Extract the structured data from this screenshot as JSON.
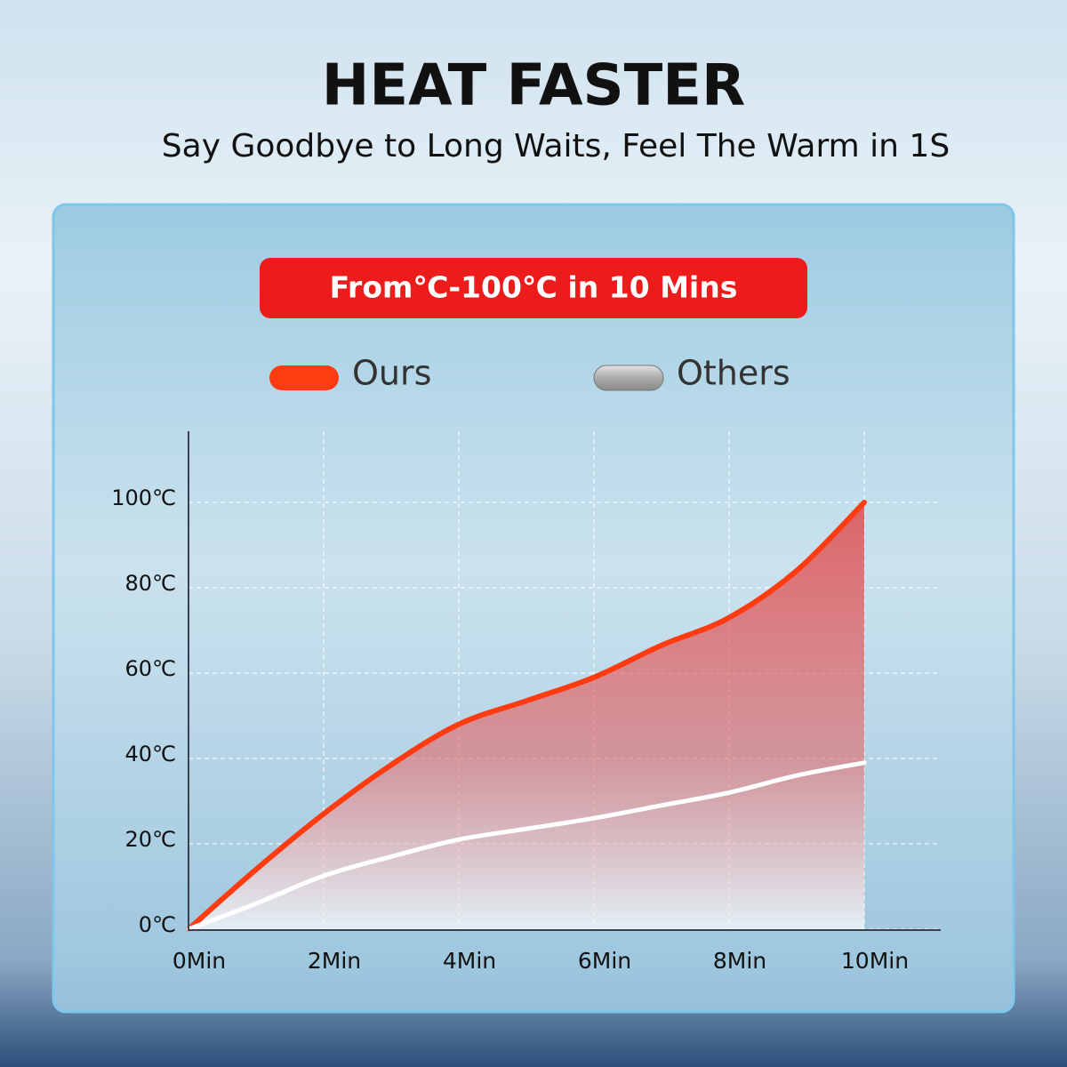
{
  "chart_data": {
    "type": "line",
    "title": "HEAT FASTER",
    "subtitle": "Say Goodbye to Long Waits, Feel The Warm in 1S",
    "annotation": "From℃-100℃ in 10 Mins",
    "x": [
      0,
      1,
      2,
      3,
      4,
      5,
      6,
      7,
      8,
      9,
      10
    ],
    "series": [
      {
        "name": "Ours",
        "color": "#ff3b12",
        "values": [
          0,
          14,
          27,
          38.5,
          48,
          53.5,
          59,
          66.5,
          73,
          84,
          100
        ]
      },
      {
        "name": "Others",
        "color": "#ffffff",
        "values": [
          0,
          6,
          12.5,
          17,
          21,
          23.5,
          26,
          29,
          32,
          36,
          39
        ]
      }
    ],
    "xlim": [
      0,
      11.1
    ],
    "ylim": [
      0,
      115
    ],
    "xticks": [
      {
        "value": 0,
        "label": "0Min"
      },
      {
        "value": 2,
        "label": "2Min"
      },
      {
        "value": 4,
        "label": "4Min"
      },
      {
        "value": 6,
        "label": "6Min"
      },
      {
        "value": 8,
        "label": "8Min"
      },
      {
        "value": 10,
        "label": "10Min"
      }
    ],
    "yticks": [
      {
        "value": 0,
        "label": "0℃"
      },
      {
        "value": 20,
        "label": "20℃"
      },
      {
        "value": 40,
        "label": "40℃"
      },
      {
        "value": 60,
        "label": "60℃"
      },
      {
        "value": 80,
        "label": "80℃"
      },
      {
        "value": 100,
        "label": "100℃"
      }
    ],
    "grid": true
  }
}
